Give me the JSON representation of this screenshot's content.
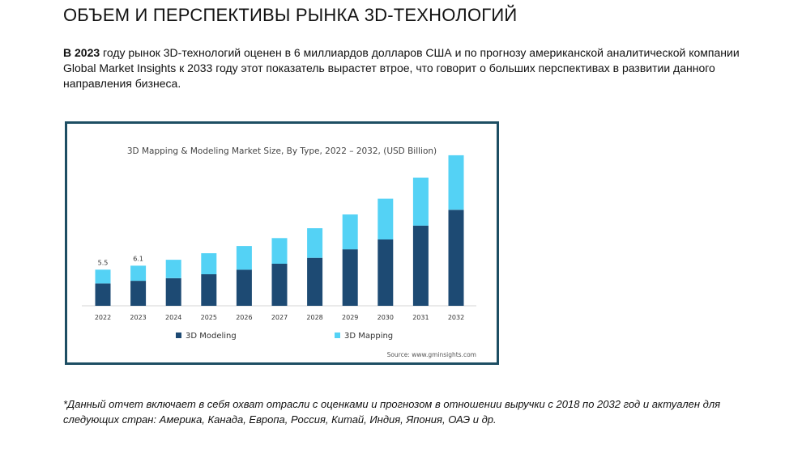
{
  "page": {
    "title": "ОБЪЕМ И ПЕРСПЕКТИВЫ РЫНКА 3D-ТЕХНОЛОГИЙ",
    "intro_bold": "В 2023",
    "intro_rest": " году рынок 3D-технологий оценен в 6 миллиардов долларов США и по прогнозу американской аналитической компании Global Market Insights к 2033 году этот показатель вырастет втрое, что говорит о больших перспективах в развитии данного направления бизнеса.",
    "footnote": "*Данный отчет включает в себя охват отрасли с оценками и прогнозом в отношении выручки с 2018 по 2032 год и актуален для следующих стран: Америка, Канада, Европа, Россия, Китай, Индия, Япония, ОАЭ и др."
  },
  "chart_data": {
    "type": "bar",
    "stacked": true,
    "title": "3D Mapping & Modeling Market Size, By Type, 2022 – 2032, (USD Billion)",
    "source": "Source: www.gminsights.com",
    "categories": [
      "2022",
      "2023",
      "2024",
      "2025",
      "2026",
      "2027",
      "2028",
      "2029",
      "2030",
      "2031",
      "2032"
    ],
    "series": [
      {
        "name": "3D Modeling",
        "color": "#1d4a73",
        "values": [
          3.4,
          3.8,
          4.2,
          4.8,
          5.5,
          6.4,
          7.3,
          8.6,
          10.1,
          12.2,
          14.6
        ]
      },
      {
        "name": "3D Mapping",
        "color": "#54d2f5",
        "values": [
          2.1,
          2.3,
          2.8,
          3.2,
          3.6,
          3.9,
          4.5,
          5.3,
          6.2,
          7.3,
          8.3
        ]
      }
    ],
    "data_labels": [
      "5.5",
      "6.1",
      "",
      "",
      "",
      "",
      "",
      "",
      "",
      "",
      ""
    ],
    "ylim": [
      0,
      24
    ],
    "grid": false,
    "y_axis_visible": false,
    "legend_position": "bottom"
  }
}
